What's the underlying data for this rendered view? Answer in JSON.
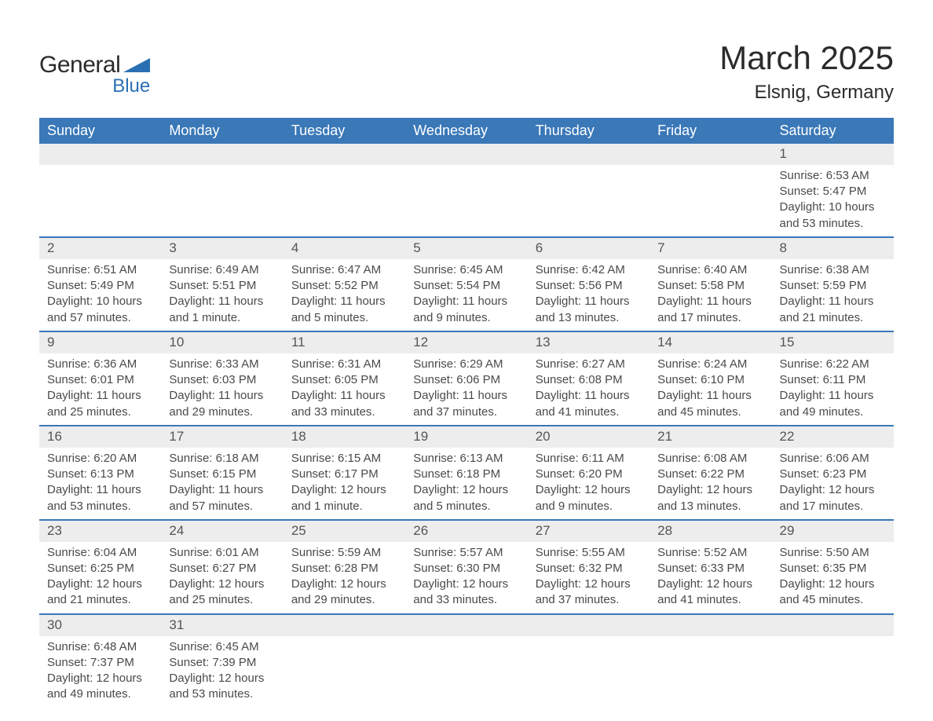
{
  "logo": {
    "text1": "General",
    "text2": "Blue",
    "triangle_color": "#2b6fb3"
  },
  "title": "March 2025",
  "location": "Elsnig, Germany",
  "colors": {
    "header_bg": "#3a78b8",
    "header_text": "#ffffff",
    "daynum_bg": "#ededed",
    "row_border": "#3a78b8",
    "body_text": "#4a4a4a",
    "page_bg": "#ffffff"
  },
  "typography": {
    "title_fontsize": 42,
    "location_fontsize": 24,
    "header_fontsize": 18,
    "cell_fontsize": 15
  },
  "calendar": {
    "type": "table",
    "columns": [
      "Sunday",
      "Monday",
      "Tuesday",
      "Wednesday",
      "Thursday",
      "Friday",
      "Saturday"
    ],
    "weeks": [
      [
        null,
        null,
        null,
        null,
        null,
        null,
        {
          "n": "1",
          "sr": "6:53 AM",
          "ss": "5:47 PM",
          "dl": "10 hours and 53 minutes."
        }
      ],
      [
        {
          "n": "2",
          "sr": "6:51 AM",
          "ss": "5:49 PM",
          "dl": "10 hours and 57 minutes."
        },
        {
          "n": "3",
          "sr": "6:49 AM",
          "ss": "5:51 PM",
          "dl": "11 hours and 1 minute."
        },
        {
          "n": "4",
          "sr": "6:47 AM",
          "ss": "5:52 PM",
          "dl": "11 hours and 5 minutes."
        },
        {
          "n": "5",
          "sr": "6:45 AM",
          "ss": "5:54 PM",
          "dl": "11 hours and 9 minutes."
        },
        {
          "n": "6",
          "sr": "6:42 AM",
          "ss": "5:56 PM",
          "dl": "11 hours and 13 minutes."
        },
        {
          "n": "7",
          "sr": "6:40 AM",
          "ss": "5:58 PM",
          "dl": "11 hours and 17 minutes."
        },
        {
          "n": "8",
          "sr": "6:38 AM",
          "ss": "5:59 PM",
          "dl": "11 hours and 21 minutes."
        }
      ],
      [
        {
          "n": "9",
          "sr": "6:36 AM",
          "ss": "6:01 PM",
          "dl": "11 hours and 25 minutes."
        },
        {
          "n": "10",
          "sr": "6:33 AM",
          "ss": "6:03 PM",
          "dl": "11 hours and 29 minutes."
        },
        {
          "n": "11",
          "sr": "6:31 AM",
          "ss": "6:05 PM",
          "dl": "11 hours and 33 minutes."
        },
        {
          "n": "12",
          "sr": "6:29 AM",
          "ss": "6:06 PM",
          "dl": "11 hours and 37 minutes."
        },
        {
          "n": "13",
          "sr": "6:27 AM",
          "ss": "6:08 PM",
          "dl": "11 hours and 41 minutes."
        },
        {
          "n": "14",
          "sr": "6:24 AM",
          "ss": "6:10 PM",
          "dl": "11 hours and 45 minutes."
        },
        {
          "n": "15",
          "sr": "6:22 AM",
          "ss": "6:11 PM",
          "dl": "11 hours and 49 minutes."
        }
      ],
      [
        {
          "n": "16",
          "sr": "6:20 AM",
          "ss": "6:13 PM",
          "dl": "11 hours and 53 minutes."
        },
        {
          "n": "17",
          "sr": "6:18 AM",
          "ss": "6:15 PM",
          "dl": "11 hours and 57 minutes."
        },
        {
          "n": "18",
          "sr": "6:15 AM",
          "ss": "6:17 PM",
          "dl": "12 hours and 1 minute."
        },
        {
          "n": "19",
          "sr": "6:13 AM",
          "ss": "6:18 PM",
          "dl": "12 hours and 5 minutes."
        },
        {
          "n": "20",
          "sr": "6:11 AM",
          "ss": "6:20 PM",
          "dl": "12 hours and 9 minutes."
        },
        {
          "n": "21",
          "sr": "6:08 AM",
          "ss": "6:22 PM",
          "dl": "12 hours and 13 minutes."
        },
        {
          "n": "22",
          "sr": "6:06 AM",
          "ss": "6:23 PM",
          "dl": "12 hours and 17 minutes."
        }
      ],
      [
        {
          "n": "23",
          "sr": "6:04 AM",
          "ss": "6:25 PM",
          "dl": "12 hours and 21 minutes."
        },
        {
          "n": "24",
          "sr": "6:01 AM",
          "ss": "6:27 PM",
          "dl": "12 hours and 25 minutes."
        },
        {
          "n": "25",
          "sr": "5:59 AM",
          "ss": "6:28 PM",
          "dl": "12 hours and 29 minutes."
        },
        {
          "n": "26",
          "sr": "5:57 AM",
          "ss": "6:30 PM",
          "dl": "12 hours and 33 minutes."
        },
        {
          "n": "27",
          "sr": "5:55 AM",
          "ss": "6:32 PM",
          "dl": "12 hours and 37 minutes."
        },
        {
          "n": "28",
          "sr": "5:52 AM",
          "ss": "6:33 PM",
          "dl": "12 hours and 41 minutes."
        },
        {
          "n": "29",
          "sr": "5:50 AM",
          "ss": "6:35 PM",
          "dl": "12 hours and 45 minutes."
        }
      ],
      [
        {
          "n": "30",
          "sr": "6:48 AM",
          "ss": "7:37 PM",
          "dl": "12 hours and 49 minutes."
        },
        {
          "n": "31",
          "sr": "6:45 AM",
          "ss": "7:39 PM",
          "dl": "12 hours and 53 minutes."
        },
        null,
        null,
        null,
        null,
        null
      ]
    ],
    "labels": {
      "sunrise": "Sunrise:",
      "sunset": "Sunset:",
      "daylight": "Daylight:"
    }
  }
}
